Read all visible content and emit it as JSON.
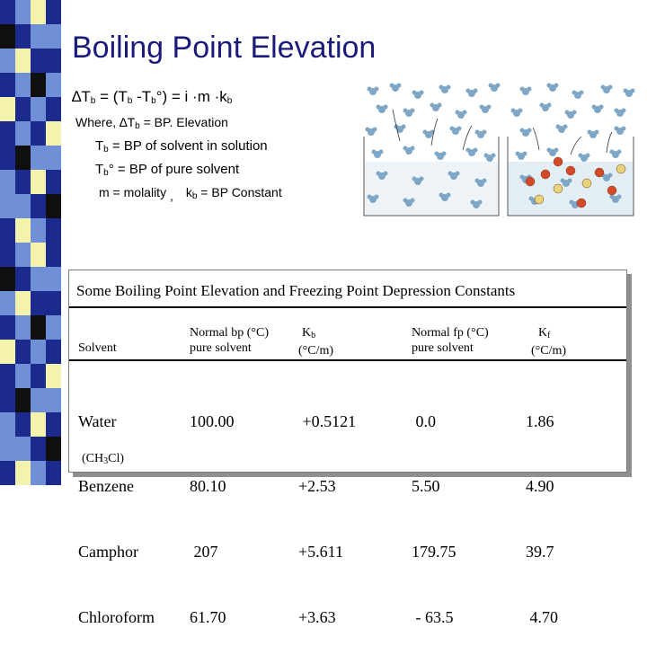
{
  "title": "Boiling Point Elevation",
  "equation": {
    "delta": "∆",
    "T": "T",
    "b": "b",
    "deg": "°",
    "middle_open": " = (T",
    "middle_minus": " -T",
    "close_eq": ") = i ·m ·k",
    "k_sub": "b"
  },
  "definitions": {
    "where_prefix": "Where, ∆T",
    "where_sub": "b",
    "where_text": " = BP. Elevation",
    "tb_T": "T",
    "tb_sub": "b",
    "tb_text": " = BP of solvent in solution",
    "tb0_T": "T",
    "tb0_sub": "b",
    "tb0_text": "° = BP of pure solvent",
    "m_text": "m = molality",
    "m_sep": ",",
    "kb_k": "k",
    "kb_sub": "b",
    "kb_text": " = BP Constant"
  },
  "colors": {
    "title": "#1a1a7a",
    "strip": [
      "#1b2a8c",
      "#6f8fd6",
      "#f4f3ad",
      "#0f0f0f",
      "#6f8fd6",
      "#1b2a8c"
    ],
    "solvent_molecule": "#7ea6c6",
    "solute_ion_red": "#d24a2a",
    "solute_ion_yellow": "#e8d37a"
  },
  "table": {
    "caption": "Some Boiling Point Elevation and Freezing Point Depression Constants",
    "headers": {
      "solvent": "Solvent",
      "bp_line1": "Normal bp (°C)",
      "bp_line2": "pure solvent",
      "kb_line1": "K",
      "kb_sub": "b",
      "kb_line2": "(°C/m)",
      "fp_line1": "Normal fp (°C)",
      "fp_line2": "pure solvent",
      "kf_line1": "K",
      "kf_sub": "f",
      "kf_line2": "(°C/m)"
    },
    "solvents": [
      "Water",
      "Benzene",
      "Camphor",
      "Chloroform"
    ],
    "bp": [
      "100.00",
      "80.10",
      " 207",
      "61.70"
    ],
    "kb": [
      " +0.5121",
      "+2.53",
      "+5.611",
      "+3.63"
    ],
    "fp": [
      " 0.0",
      "5.50",
      "179.75",
      " - 63.5"
    ],
    "kf": [
      "1.86",
      "4.90",
      "39.7",
      " 4.70"
    ],
    "chloroform_note_open": "(CH",
    "chloroform_note_sub": "3",
    "chloroform_note_close": "Cl)"
  }
}
